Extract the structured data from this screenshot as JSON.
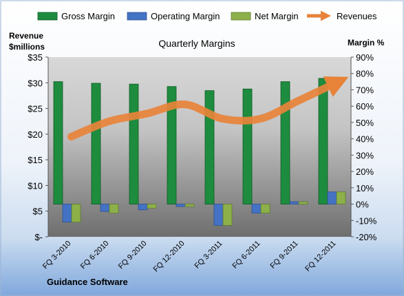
{
  "chart_data": {
    "type": "bar",
    "title": "Quarterly Margins",
    "ylabel_left": [
      "Revenue",
      "$millions"
    ],
    "ylabel_right": "Margin %",
    "footer": "Guidance Software",
    "categories": [
      "FQ 3-2010",
      "FQ 6-2010",
      "FQ 9-2010",
      "FQ 12-2010",
      "FQ 3-2011",
      "FQ 6-2011",
      "FQ 9-2011",
      "FQ 12-2011"
    ],
    "left_axis": {
      "min": 0,
      "max": 35,
      "step": 5,
      "ticks": [
        "$-",
        "$5",
        "$10",
        "$15",
        "$20",
        "$25",
        "$30",
        "$35"
      ]
    },
    "right_axis": {
      "min": -20,
      "max": 90,
      "step": 10,
      "ticks": [
        "-20%",
        "-10%",
        "0%",
        "10%",
        "20%",
        "30%",
        "40%",
        "50%",
        "60%",
        "70%",
        "80%",
        "90%"
      ]
    },
    "series": [
      {
        "name": "Gross Margin",
        "axis": "right",
        "kind": "bar",
        "color": "#1E8C3E",
        "values": [
          75,
          74,
          73.5,
          72,
          69.5,
          70.5,
          75,
          77
        ]
      },
      {
        "name": "Operating Margin",
        "axis": "right",
        "kind": "bar",
        "color": "#4472C4",
        "values": [
          -11,
          -4.5,
          -3.5,
          -1.5,
          -13,
          -5.5,
          1.5,
          7.5
        ]
      },
      {
        "name": "Net Margin",
        "axis": "right",
        "kind": "bar",
        "color": "#8DB04A",
        "values": [
          -11,
          -5.5,
          -2.5,
          -1.5,
          -13,
          -5.5,
          1.5,
          7.5
        ]
      },
      {
        "name": "Revenues",
        "axis": "left",
        "kind": "line",
        "color": "#E8833A",
        "values": [
          19.5,
          22.5,
          24,
          25.8,
          23,
          23,
          26.5,
          30
        ]
      }
    ],
    "legend_position": "top",
    "grid": false
  }
}
